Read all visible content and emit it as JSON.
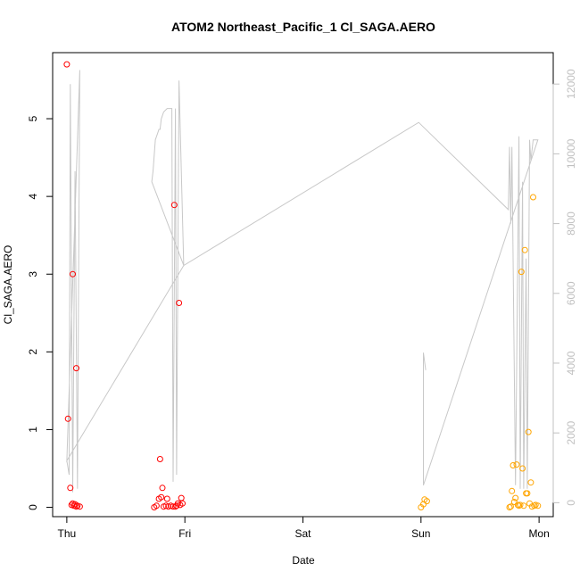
{
  "chart_data": {
    "type": "scatter",
    "title": "ATOM2 Northeast_Pacific_1 Cl_SAGA.AERO",
    "xlabel": "Date",
    "ylabel": "Cl_SAGA.AERO",
    "x_ticks": [
      {
        "day": 0,
        "label": "Thu"
      },
      {
        "day": 1,
        "label": "Fri"
      },
      {
        "day": 2,
        "label": "Sat"
      },
      {
        "day": 3,
        "label": "Sun"
      },
      {
        "day": 4,
        "label": "Mon"
      }
    ],
    "xlim": [
      -0.12,
      4.12
    ],
    "ylim": [
      -0.12,
      5.85
    ],
    "y_ticks": [
      0,
      1,
      2,
      3,
      4,
      5
    ],
    "y2_ticks": [
      0,
      2000,
      4000,
      6000,
      8000,
      10000,
      12000
    ],
    "y2lim": [
      -400,
      12900
    ],
    "grid": false,
    "colors": {
      "series_red": "#ff0000",
      "series_orange": "#ffa500",
      "altitude_line": "#c8c8c8",
      "axis": "#000000",
      "right_axis": "#c0c0c0"
    },
    "series": [
      {
        "color": "red",
        "points": [
          [
            0.0,
            5.7
          ],
          [
            0.01,
            1.14
          ],
          [
            0.03,
            0.25
          ],
          [
            0.05,
            3.0
          ],
          [
            0.08,
            1.79
          ],
          [
            0.04,
            0.03
          ],
          [
            0.05,
            0.05
          ],
          [
            0.06,
            0.02
          ],
          [
            0.07,
            0.04
          ],
          [
            0.08,
            0.01
          ],
          [
            0.09,
            0.02
          ],
          [
            0.11,
            0.01
          ],
          [
            0.74,
            0.0
          ],
          [
            0.76,
            0.02
          ],
          [
            0.78,
            0.11
          ],
          [
            0.79,
            0.62
          ],
          [
            0.8,
            0.13
          ],
          [
            0.81,
            0.25
          ],
          [
            0.82,
            0.01
          ],
          [
            0.84,
            0.02
          ],
          [
            0.85,
            0.11
          ],
          [
            0.86,
            0.01
          ],
          [
            0.88,
            0.02
          ],
          [
            0.9,
            0.01
          ],
          [
            0.91,
            3.89
          ],
          [
            0.92,
            0.01
          ],
          [
            0.93,
            0.02
          ],
          [
            0.94,
            0.05
          ],
          [
            0.95,
            2.63
          ],
          [
            0.96,
            0.03
          ],
          [
            0.97,
            0.12
          ],
          [
            0.98,
            0.05
          ]
        ]
      },
      {
        "color": "orange",
        "points": [
          [
            3.0,
            0.0
          ],
          [
            3.02,
            0.04
          ],
          [
            3.03,
            0.1
          ],
          [
            3.05,
            0.08
          ],
          [
            3.75,
            0.0
          ],
          [
            3.76,
            0.01
          ],
          [
            3.77,
            0.21
          ],
          [
            3.78,
            0.54
          ],
          [
            3.79,
            0.07
          ],
          [
            3.8,
            0.12
          ],
          [
            3.81,
            0.55
          ],
          [
            3.82,
            0.03
          ],
          [
            3.83,
            0.02
          ],
          [
            3.84,
            0.03
          ],
          [
            3.85,
            3.03
          ],
          [
            3.86,
            0.5
          ],
          [
            3.87,
            0.02
          ],
          [
            3.88,
            3.31
          ],
          [
            3.89,
            0.18
          ],
          [
            3.9,
            0.18
          ],
          [
            3.91,
            0.97
          ],
          [
            3.92,
            0.05
          ],
          [
            3.93,
            0.32
          ],
          [
            3.94,
            0.01
          ],
          [
            3.95,
            3.99
          ],
          [
            3.96,
            0.02
          ],
          [
            3.97,
            0.03
          ],
          [
            3.99,
            0.02
          ]
        ]
      }
    ],
    "altitude_line": {
      "color": "gray",
      "points": [
        [
          0.0,
          1200
        ],
        [
          0.02,
          800
        ],
        [
          0.03,
          12000
        ],
        [
          0.05,
          300
        ],
        [
          0.07,
          9500
        ],
        [
          0.09,
          400
        ],
        [
          0.11,
          12400
        ],
        [
          0.0,
          1200
        ],
        [
          0.99,
          6800
        ],
        [
          0.72,
          9200
        ],
        [
          0.73,
          9500
        ],
        [
          0.75,
          10400
        ],
        [
          0.77,
          10600
        ],
        [
          0.78,
          10700
        ],
        [
          0.79,
          10700
        ],
        [
          0.8,
          11000
        ],
        [
          0.82,
          11200
        ],
        [
          0.85,
          11300
        ],
        [
          0.87,
          11300
        ],
        [
          0.89,
          11300
        ],
        [
          0.9,
          600
        ],
        [
          0.92,
          11300
        ],
        [
          0.93,
          800
        ],
        [
          0.95,
          12100
        ],
        [
          0.99,
          6800
        ],
        [
          2.98,
          10900
        ],
        [
          3.74,
          8400
        ],
        [
          3.75,
          10200
        ],
        [
          3.76,
          8000
        ],
        [
          3.77,
          10200
        ],
        [
          3.8,
          500
        ],
        [
          3.83,
          10500
        ],
        [
          3.84,
          400
        ],
        [
          3.86,
          9200
        ],
        [
          3.87,
          400
        ],
        [
          3.89,
          7000
        ],
        [
          3.9,
          400
        ],
        [
          3.92,
          10400
        ],
        [
          3.93,
          9800
        ],
        [
          3.95,
          10400
        ],
        [
          3.99,
          10400
        ],
        [
          3.02,
          500
        ],
        [
          3.02,
          4300
        ],
        [
          3.04,
          3800
        ]
      ]
    }
  }
}
